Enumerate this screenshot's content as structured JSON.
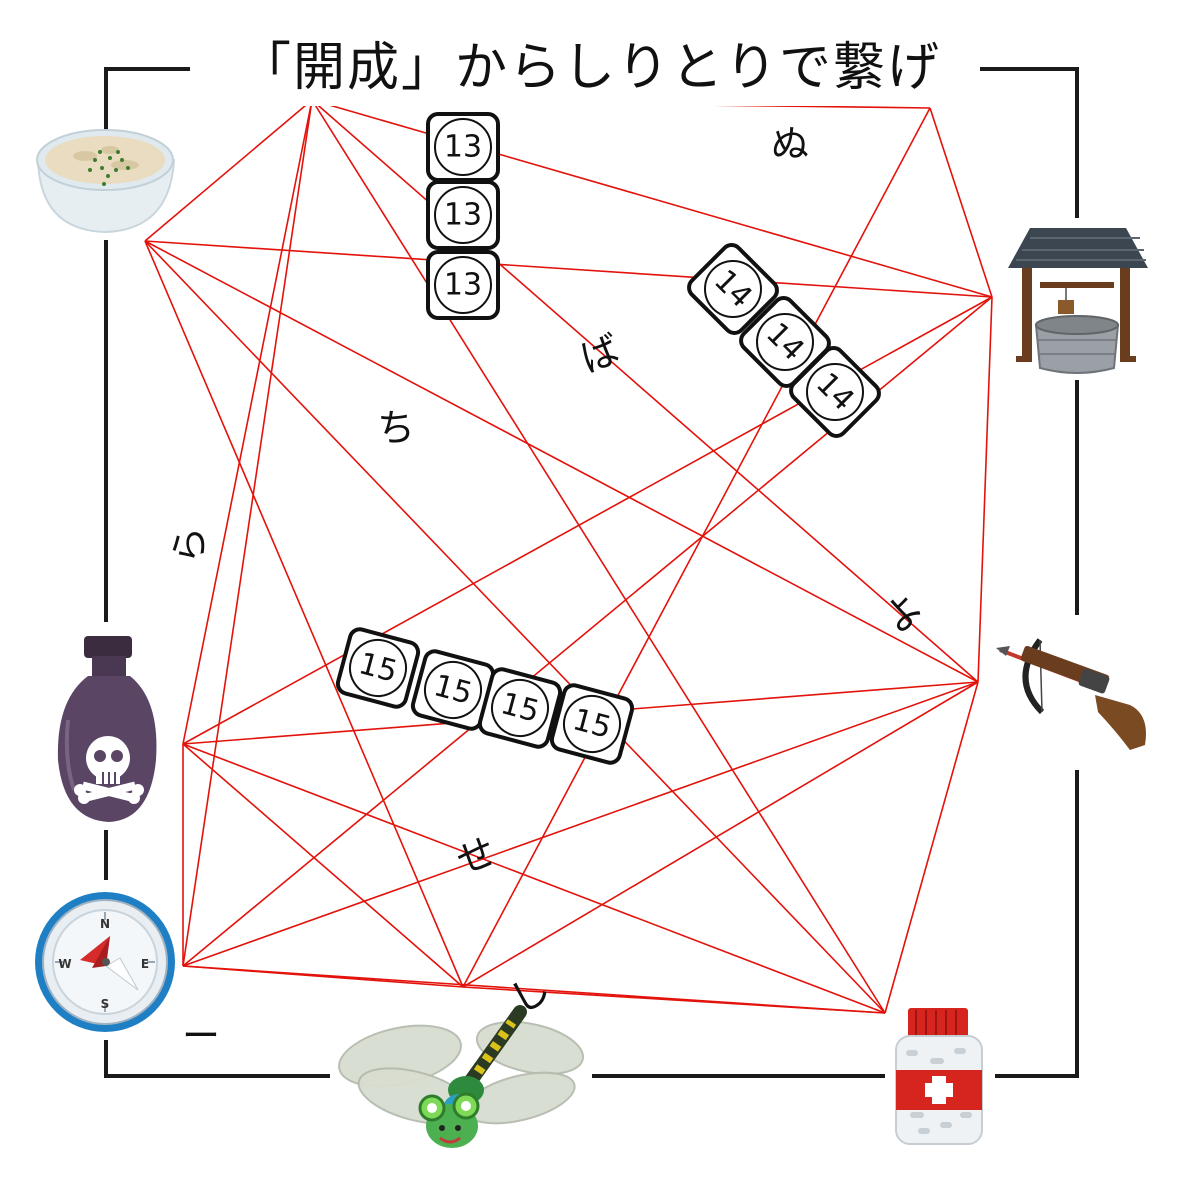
{
  "title": "「開成」からしりとりで繋げ",
  "colors": {
    "frame": "#1a1a1a",
    "lines": "#e3120b",
    "text": "#111111"
  },
  "number_tiles": [
    {
      "group": "13",
      "values": [
        "13",
        "13",
        "13"
      ]
    },
    {
      "group": "14",
      "values": [
        "14",
        "14",
        "14"
      ]
    },
    {
      "group": "15",
      "values": [
        "15",
        "15",
        "15",
        "15"
      ]
    }
  ],
  "kana_hints": [
    "ぬ",
    "ば",
    "ち",
    "ら",
    "よ",
    "せ",
    "し",
    "ー"
  ],
  "pictures": [
    {
      "name": "porridge-bowl-icon"
    },
    {
      "name": "water-well-icon"
    },
    {
      "name": "crossbow-icon"
    },
    {
      "name": "medicine-bottle-icon"
    },
    {
      "name": "dragonfly-icon"
    },
    {
      "name": "compass-icon"
    },
    {
      "name": "poison-bottle-icon"
    }
  ],
  "compass_letters": [
    "N",
    "E",
    "S",
    "W"
  ]
}
